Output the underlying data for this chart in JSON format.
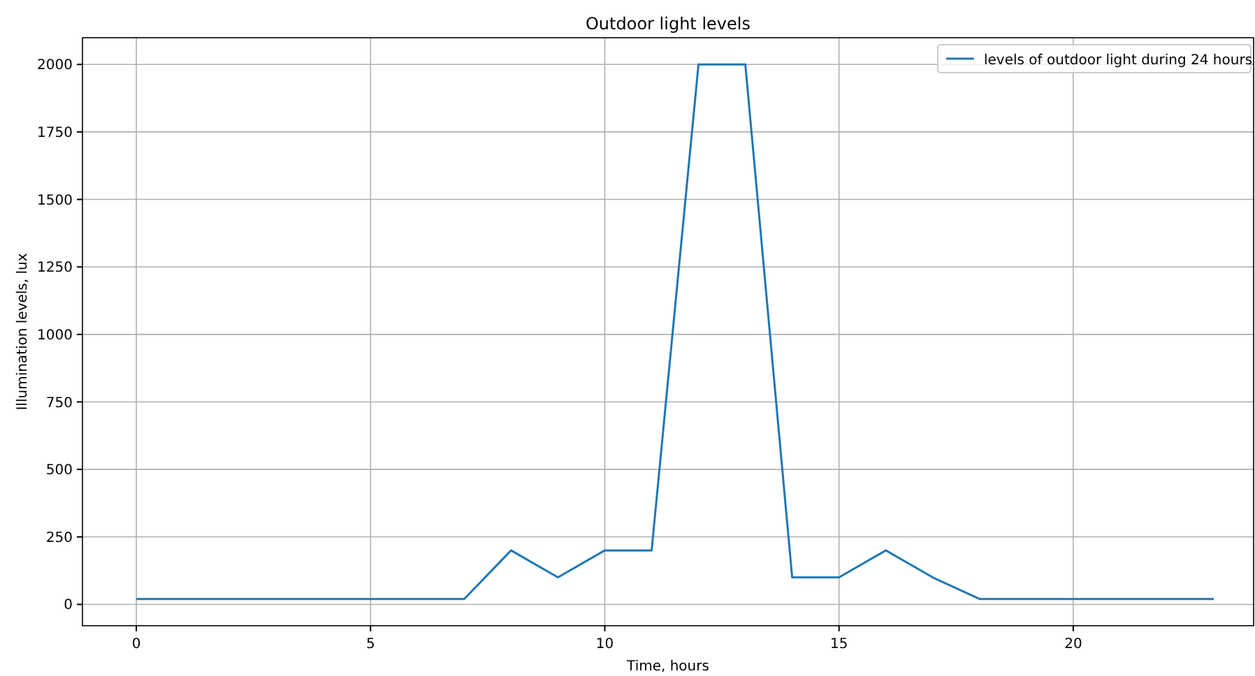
{
  "chart_data": {
    "type": "line",
    "title": "Outdoor light levels",
    "xlabel": "Time, hours",
    "ylabel": "Illumination levels, lux",
    "x": [
      0,
      1,
      2,
      3,
      4,
      5,
      6,
      7,
      8,
      9,
      10,
      11,
      12,
      13,
      14,
      15,
      16,
      17,
      18,
      19,
      20,
      21,
      22,
      23
    ],
    "series": [
      {
        "name": "levels of outdoor light during 24 hours",
        "color": "#1f77b4",
        "values": [
          20,
          20,
          20,
          20,
          20,
          20,
          20,
          20,
          200,
          100,
          200,
          200,
          2000,
          2000,
          100,
          100,
          200,
          100,
          20,
          20,
          20,
          20,
          20,
          20
        ]
      }
    ],
    "xlim": [
      -1.15,
      23.85
    ],
    "ylim": [
      -79,
      2099
    ],
    "xticks": [
      0,
      5,
      10,
      15,
      20
    ],
    "yticks": [
      0,
      250,
      500,
      750,
      1000,
      1250,
      1500,
      1750,
      2000
    ],
    "grid": true,
    "legend": "top right",
    "marker": "none",
    "line_style": "solid"
  }
}
